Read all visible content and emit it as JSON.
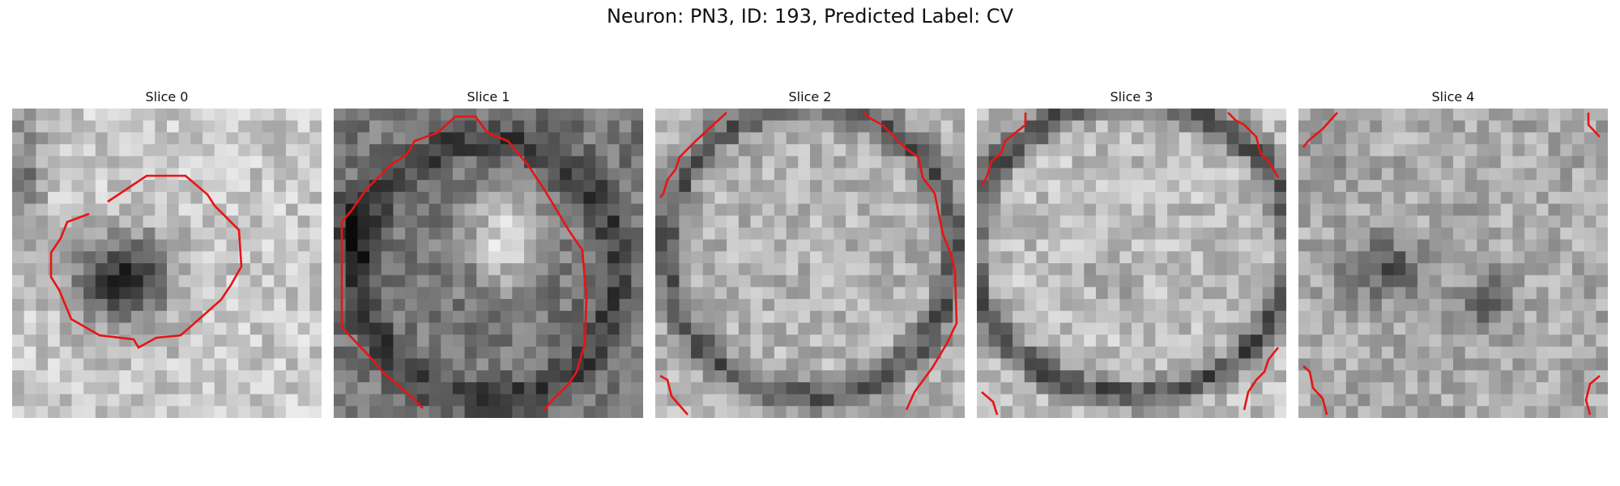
{
  "figure": {
    "title": "Neuron: PN3, ID: 193, Predicted Label: CV"
  },
  "panels": [
    {
      "title": "Slice 0",
      "texture": "dark-blob-center"
    },
    {
      "title": "Slice 1",
      "texture": "bright-core-ring"
    },
    {
      "title": "Slice 2",
      "texture": "bright-disc-dark-rim"
    },
    {
      "title": "Slice 3",
      "texture": "bright-disc"
    },
    {
      "title": "Slice 4",
      "texture": "mottled-dark-patches"
    }
  ],
  "colors": {
    "contour": "#e81414",
    "background": "#ffffff"
  }
}
